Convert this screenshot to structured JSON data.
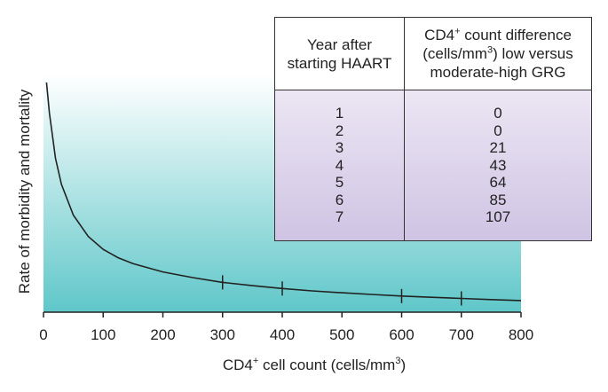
{
  "chart_data": {
    "type": "line",
    "xlabel": "CD4",
    "xlabel_sup": "+",
    "xlabel_rest": " cell count (cells/mm",
    "xlabel_sup2": "3",
    "xlabel_end": ")",
    "ylabel": "Rate of morbidity and mortality",
    "xlim": [
      0,
      800
    ],
    "x_ticks": [
      0,
      100,
      200,
      300,
      400,
      500,
      600,
      700,
      800
    ],
    "x": [
      5,
      10,
      20,
      30,
      50,
      75,
      100,
      125,
      150,
      200,
      250,
      300,
      350,
      400,
      450,
      500,
      550,
      600,
      650,
      700,
      750,
      800
    ],
    "y": [
      97,
      84,
      65,
      54,
      41,
      32,
      26.5,
      23,
      20.5,
      17,
      14.6,
      12.6,
      11.2,
      10.0,
      9.0,
      8.2,
      7.5,
      6.8,
      6.3,
      5.8,
      5.3,
      4.9
    ],
    "ylim": [
      0,
      100
    ],
    "markers_x": [
      300,
      400,
      600,
      700
    ],
    "grid": false,
    "line_color": "#222222",
    "fill_top_color": "#ffffff",
    "fill_bottom_color": "#5fc7c9"
  },
  "table": {
    "header_left": "Year after\nstarting HAART",
    "header_right_pre": "CD4",
    "header_right_sup": "+",
    "header_right_mid": " count difference\n(cells/mm",
    "header_right_sup2": "3",
    "header_right_end": ") low versus\nmoderate-high GRG",
    "years": [
      "1",
      "2",
      "3",
      "4",
      "5",
      "6",
      "7"
    ],
    "differences": [
      "0",
      "0",
      "21",
      "43",
      "64",
      "85",
      "107"
    ],
    "header_bg": "#ffffff",
    "body_bg_top": "#ece6f4",
    "body_bg_bottom": "#cfc4e3"
  }
}
